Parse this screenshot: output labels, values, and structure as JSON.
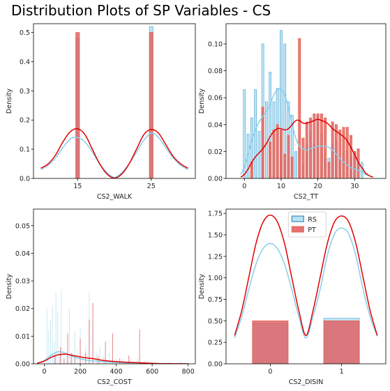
{
  "figure_title": "Distribution Plots of SP Variables - CS",
  "colors": {
    "rs_fill": "#87CEEB",
    "rs_edge": "#4FA3D1",
    "rs_kde": "#87CEEB",
    "pt_fill": "#E0585A",
    "pt_edge": "#E8614E",
    "pt_kde": "#E00000",
    "legend_rs_edge": "#1F77B4",
    "legend_pt_edge": "#E8614E"
  },
  "chart_data": [
    {
      "type": "bar",
      "xlabel": "CS2_WALK",
      "ylabel": "Density",
      "xlim": [
        9,
        31
      ],
      "ylim": [
        0,
        0.53
      ],
      "xticks": [
        15,
        25
      ],
      "xtick_labels": [
        "15",
        "25"
      ],
      "yticks": [
        0,
        0.1,
        0.2,
        0.3,
        0.4,
        0.5
      ],
      "ytick_labels": [
        "0.0",
        "0.1",
        "0.2",
        "0.3",
        "0.4",
        "0.5"
      ],
      "bar_width": 0.5,
      "series": [
        {
          "name": "RS",
          "x": [
            15,
            25
          ],
          "values": [
            0.48,
            0.52
          ]
        },
        {
          "name": "PT",
          "x": [
            15,
            25
          ],
          "values": [
            0.5,
            0.5
          ]
        }
      ],
      "kde": [
        {
          "name": "RS",
          "x": [
            10,
            11,
            12,
            13,
            14,
            15,
            16,
            17,
            18,
            19,
            20,
            21,
            22,
            23,
            24,
            25,
            26,
            27,
            28,
            29,
            30
          ],
          "y": [
            0.03,
            0.045,
            0.07,
            0.105,
            0.135,
            0.14,
            0.125,
            0.09,
            0.05,
            0.02,
            0.004,
            0.02,
            0.05,
            0.09,
            0.13,
            0.155,
            0.14,
            0.105,
            0.07,
            0.045,
            0.03
          ]
        },
        {
          "name": "PT",
          "x": [
            10,
            11,
            12,
            13,
            14,
            15,
            16,
            17,
            18,
            19,
            20,
            21,
            22,
            23,
            24,
            25,
            26,
            27,
            28,
            29,
            30
          ],
          "y": [
            0.035,
            0.05,
            0.08,
            0.125,
            0.16,
            0.17,
            0.15,
            0.1,
            0.05,
            0.015,
            0.001,
            0.015,
            0.05,
            0.1,
            0.15,
            0.168,
            0.155,
            0.115,
            0.075,
            0.05,
            0.035
          ]
        }
      ]
    },
    {
      "type": "bar",
      "xlabel": "CS2_TT",
      "ylabel": "Density",
      "xlim": [
        -5,
        38.5
      ],
      "ylim": [
        0,
        0.115
      ],
      "xticks": [
        0,
        10,
        20,
        30
      ],
      "xtick_labels": [
        "0",
        "10",
        "20",
        "30"
      ],
      "yticks": [
        0,
        0.02,
        0.04,
        0.06,
        0.08,
        0.1
      ],
      "ytick_labels": [
        "0.00",
        "0.02",
        "0.04",
        "0.06",
        "0.08",
        "0.10"
      ],
      "bar_width": 0.6,
      "series": [
        {
          "name": "RS",
          "x": [
            0,
            1,
            2,
            3,
            4,
            5,
            6,
            7,
            8,
            9,
            10,
            11,
            12,
            13,
            14,
            15,
            16,
            17,
            18,
            19,
            20,
            21,
            22,
            23,
            24,
            25,
            26,
            27,
            28,
            29,
            30,
            31,
            32
          ],
          "values": [
            0.066,
            0.033,
            0.045,
            0.066,
            0.035,
            0.1,
            0.057,
            0.079,
            0.057,
            0.067,
            0.11,
            0.1,
            0.057,
            0.047,
            0.02,
            0.022,
            0.01,
            0.025,
            0.035,
            0.025,
            0.047,
            0.032,
            0.015,
            0.015,
            0.025,
            0.028,
            0.015,
            0.02,
            0.02,
            0.015,
            0.02,
            0.01,
            0.012
          ]
        },
        {
          "name": "PT",
          "x": [
            2,
            5,
            7,
            8,
            9,
            10,
            11,
            12,
            13,
            15,
            16,
            17,
            18,
            19,
            20,
            21,
            22,
            23,
            24,
            25,
            26,
            27,
            28,
            29,
            30,
            31
          ],
          "values": [
            0.012,
            0.053,
            0.027,
            0.036,
            0.04,
            0.036,
            0.018,
            0.032,
            0.016,
            0.104,
            0.03,
            0.042,
            0.045,
            0.048,
            0.048,
            0.048,
            0.045,
            0.012,
            0.042,
            0.04,
            0.036,
            0.038,
            0.038,
            0.032,
            0.02,
            0.022
          ]
        }
      ],
      "kde": [
        {
          "name": "RS",
          "x": [
            -1,
            0,
            1,
            2,
            3,
            4,
            5,
            6,
            7,
            8,
            9,
            10,
            11,
            12,
            13,
            14,
            15,
            16,
            17,
            18,
            19,
            20,
            21,
            22,
            23,
            24,
            25,
            26,
            27,
            28,
            29,
            30,
            31,
            32,
            33,
            34,
            35
          ],
          "y": [
            0.003,
            0.009,
            0.018,
            0.028,
            0.036,
            0.042,
            0.046,
            0.05,
            0.055,
            0.062,
            0.066,
            0.066,
            0.062,
            0.052,
            0.04,
            0.03,
            0.024,
            0.022,
            0.021,
            0.022,
            0.023,
            0.024,
            0.024,
            0.024,
            0.023,
            0.021,
            0.018,
            0.015,
            0.012,
            0.01,
            0.008,
            0.007,
            0.006,
            0.005,
            0.003,
            0.002,
            0.001
          ]
        },
        {
          "name": "PT",
          "x": [
            -1,
            0,
            1,
            2,
            3,
            4,
            5,
            6,
            7,
            8,
            9,
            10,
            11,
            12,
            13,
            14,
            15,
            16,
            17,
            18,
            19,
            20,
            21,
            22,
            23,
            24,
            25,
            26,
            27,
            28,
            29,
            30,
            31,
            32,
            33,
            34,
            35
          ],
          "y": [
            0.001,
            0.003,
            0.007,
            0.012,
            0.016,
            0.019,
            0.022,
            0.026,
            0.031,
            0.035,
            0.037,
            0.037,
            0.036,
            0.037,
            0.04,
            0.043,
            0.043,
            0.041,
            0.041,
            0.042,
            0.043,
            0.044,
            0.043,
            0.042,
            0.04,
            0.037,
            0.035,
            0.033,
            0.031,
            0.028,
            0.023,
            0.018,
            0.012,
            0.008,
            0.004,
            0.002,
            0.001
          ]
        }
      ]
    },
    {
      "type": "bar",
      "xlabel": "CS2_COST",
      "ylabel": "Density",
      "xlim": [
        -60,
        840
      ],
      "ylim": [
        0,
        0.056
      ],
      "xticks": [
        0,
        200,
        400,
        600,
        800
      ],
      "xtick_labels": [
        "0",
        "200",
        "400",
        "600",
        "800"
      ],
      "yticks": [
        0,
        0.01,
        0.02,
        0.03,
        0.04,
        0.05
      ],
      "ytick_labels": [
        "0.00",
        "0.01",
        "0.02",
        "0.03",
        "0.04",
        "0.05"
      ],
      "bar_width": 3,
      "series": [
        {
          "name": "RS",
          "x": [
            15,
            25,
            35,
            45,
            55,
            65,
            75,
            85,
            95,
            110,
            125,
            140,
            155,
            170,
            185,
            200,
            215,
            230,
            250,
            270,
            290,
            310,
            330,
            360,
            400,
            440,
            480,
            520,
            560,
            620,
            700,
            760
          ],
          "values": [
            0.02,
            0.012,
            0.016,
            0.021,
            0.008,
            0.026,
            0.019,
            0.004,
            0.027,
            0.005,
            0.003,
            0.02,
            0.004,
            0.012,
            0.005,
            0.013,
            0.004,
            0.006,
            0.026,
            0.014,
            0.004,
            0.006,
            0.003,
            0.004,
            0.002,
            0.002,
            0.002,
            0.002,
            0.001,
            0.001,
            0.001,
            0.001
          ]
        },
        {
          "name": "PT",
          "x": [
            60,
            90,
            110,
            130,
            150,
            170,
            200,
            230,
            250,
            270,
            300,
            340,
            380,
            420,
            470,
            530
          ],
          "values": [
            0.003,
            0.006,
            0.002,
            0.011,
            0.004,
            0.003,
            0.009,
            0.004,
            0.016,
            0.022,
            0.003,
            0.008,
            0.011,
            0.002,
            0.003,
            0.0125
          ]
        }
      ],
      "kde": [
        {
          "name": "RS",
          "x": [
            -40,
            0,
            40,
            80,
            120,
            160,
            200,
            240,
            280,
            320,
            400,
            480,
            560,
            640,
            720,
            800
          ],
          "y": [
            0.0002,
            0.0012,
            0.0032,
            0.0044,
            0.0038,
            0.0026,
            0.0018,
            0.0013,
            0.001,
            0.0008,
            0.0005,
            0.0003,
            0.0002,
            0.0001,
            5e-05,
            2e-05
          ]
        },
        {
          "name": "PT",
          "x": [
            -40,
            0,
            40,
            80,
            120,
            160,
            200,
            240,
            280,
            320,
            400,
            480,
            560,
            640,
            720,
            800
          ],
          "y": [
            0.0002,
            0.001,
            0.0024,
            0.0033,
            0.0035,
            0.003,
            0.0025,
            0.0021,
            0.0018,
            0.0013,
            0.0008,
            0.0005,
            0.0003,
            0.0001,
            4e-05,
            1e-05
          ]
        }
      ]
    },
    {
      "type": "bar",
      "xlabel": "CS2_DISIN",
      "ylabel": "Density",
      "xlim": [
        -0.62,
        1.62
      ],
      "ylim": [
        0,
        1.8
      ],
      "xticks": [
        0,
        1
      ],
      "xtick_labels": [
        "0",
        "1"
      ],
      "yticks": [
        0,
        0.25,
        0.5,
        0.75,
        1.0,
        1.25,
        1.5,
        1.75
      ],
      "ytick_labels": [
        "0.00",
        "0.25",
        "0.50",
        "0.75",
        "1.00",
        "1.25",
        "1.50",
        "1.75"
      ],
      "bar_width": 0.5,
      "legend": {
        "placement": "top-center",
        "entries": [
          "RS",
          "PT"
        ]
      },
      "series": [
        {
          "name": "RS",
          "x": [
            0,
            1
          ],
          "values": [
            0.47,
            0.53
          ]
        },
        {
          "name": "PT",
          "x": [
            0,
            1
          ],
          "values": [
            0.5,
            0.5
          ]
        }
      ],
      "kde": [
        {
          "name": "RS",
          "x": [
            -0.5,
            -0.4,
            -0.3,
            -0.2,
            -0.1,
            0,
            0.1,
            0.2,
            0.3,
            0.4,
            0.5,
            0.6,
            0.7,
            0.8,
            0.9,
            1,
            1.1,
            1.2,
            1.3,
            1.4,
            1.5
          ],
          "y": [
            0.3,
            0.55,
            0.87,
            1.16,
            1.34,
            1.4,
            1.34,
            1.16,
            0.87,
            0.55,
            0.3,
            0.55,
            0.87,
            1.26,
            1.51,
            1.58,
            1.51,
            1.26,
            0.87,
            0.55,
            0.32
          ]
        },
        {
          "name": "PT",
          "x": [
            -0.5,
            -0.4,
            -0.3,
            -0.2,
            -0.1,
            0,
            0.1,
            0.2,
            0.3,
            0.4,
            0.5,
            0.6,
            0.7,
            0.8,
            0.9,
            1,
            1.1,
            1.2,
            1.3,
            1.4,
            1.5
          ],
          "y": [
            0.33,
            0.62,
            1.01,
            1.4,
            1.65,
            1.73,
            1.65,
            1.4,
            1.01,
            0.62,
            0.33,
            0.62,
            1.01,
            1.4,
            1.65,
            1.72,
            1.65,
            1.4,
            1.01,
            0.62,
            0.33
          ]
        }
      ]
    }
  ]
}
